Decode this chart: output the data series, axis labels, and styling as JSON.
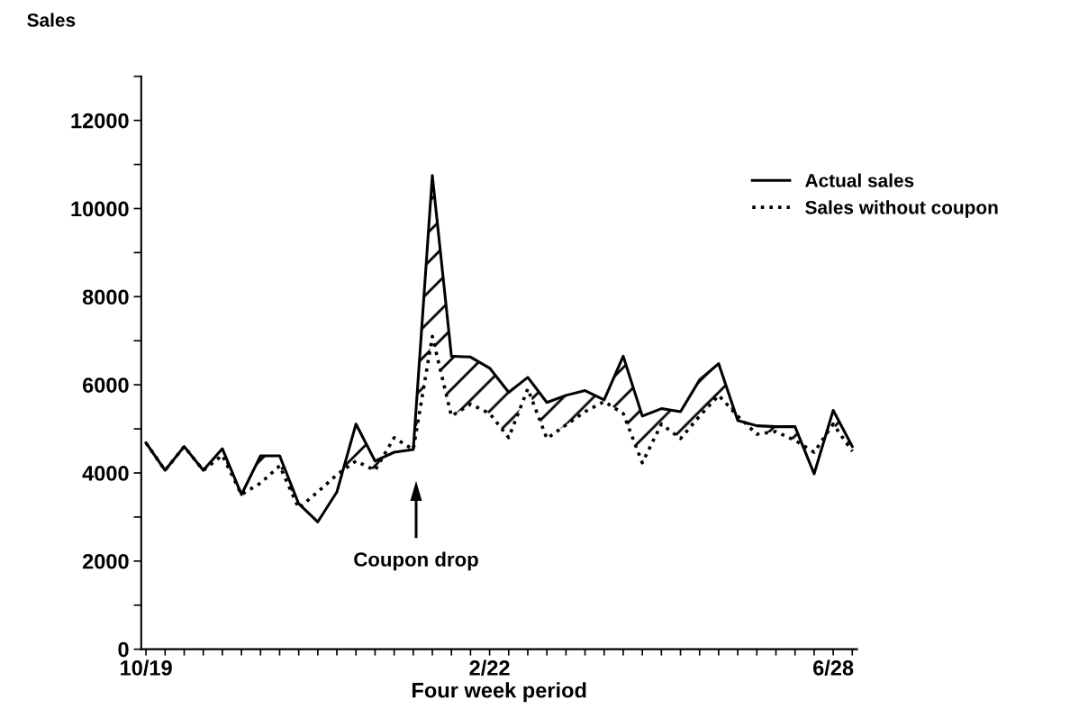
{
  "chart_data": {
    "type": "line",
    "xlabel": "Four week period",
    "ylabel": "Sales",
    "categories": [
      "10/19",
      null,
      null,
      null,
      null,
      null,
      null,
      null,
      null,
      null,
      null,
      null,
      null,
      null,
      null,
      null,
      null,
      null,
      "2/22",
      null,
      null,
      null,
      null,
      null,
      null,
      null,
      null,
      null,
      null,
      null,
      null,
      null,
      null,
      null,
      null,
      null,
      "6/28",
      null
    ],
    "series": [
      {
        "name": "Actual sales",
        "color": "#000000",
        "line_style": "solid",
        "values": [
          4680,
          4060,
          4600,
          4060,
          4550,
          3510,
          4390,
          4390,
          3300,
          2890,
          3570,
          5110,
          4270,
          4470,
          4530,
          10750,
          6650,
          6630,
          6380,
          5830,
          6170,
          5600,
          5760,
          5870,
          5660,
          6650,
          5290,
          5460,
          5390,
          6110,
          6480,
          5190,
          5070,
          5050,
          5050,
          3980,
          5420,
          4600
        ]
      },
      {
        "name": "Sales without coupon",
        "color": "#000000",
        "line_style": "dotted",
        "values": [
          4680,
          4060,
          4600,
          4060,
          4400,
          3510,
          3770,
          4160,
          3200,
          3570,
          3960,
          4270,
          4060,
          4800,
          4530,
          7100,
          5290,
          5560,
          5350,
          4800,
          5910,
          4780,
          5090,
          5390,
          5620,
          5350,
          4230,
          5110,
          4780,
          5290,
          5760,
          5290,
          4880,
          4940,
          4740,
          4470,
          5110,
          4490
        ]
      }
    ],
    "ylim": [
      0,
      13000
    ],
    "yticks": [
      0,
      {
        "value": 1000,
        "label": null
      },
      2000,
      {
        "value": 3000,
        "label": null
      },
      4000,
      {
        "value": 5000,
        "label": null
      },
      6000,
      {
        "value": 7000,
        "label": null
      },
      8000,
      {
        "value": 9000,
        "label": null
      },
      10000,
      {
        "value": 11000,
        "label": null
      },
      12000,
      {
        "value": 13000,
        "label": null
      }
    ],
    "annotations": [
      "Coupon drop"
    ],
    "legend": "top right",
    "grid": false
  }
}
